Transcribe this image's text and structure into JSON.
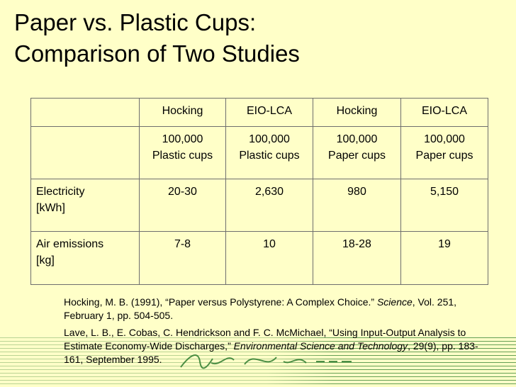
{
  "slide": {
    "title_line1": "Paper vs. Plastic Cups:",
    "title_line2": "Comparison of Two Studies"
  },
  "table": {
    "header_row1": [
      "",
      "Hocking",
      "EIO-LCA",
      "Hocking",
      "EIO-LCA"
    ],
    "header_row2": [
      [
        "",
        ""
      ],
      [
        "100,000",
        "Plastic cups"
      ],
      [
        "100,000",
        "Plastic cups"
      ],
      [
        "100,000",
        "Paper cups"
      ],
      [
        "100,000",
        "Paper cups"
      ]
    ],
    "rows": [
      {
        "label_line1": "Electricity",
        "label_line2": "[kWh]",
        "values": [
          "20-30",
          "2,630",
          "980",
          "5,150"
        ]
      },
      {
        "label_line1": "Air emissions",
        "label_line2": "[kg]",
        "values": [
          "7-8",
          "10",
          "18-28",
          "19"
        ]
      }
    ]
  },
  "references": {
    "ref1_before": "Hocking, M. B. (1991), “Paper versus Polystyrene: A Complex Choice.” ",
    "ref1_journal": "Science",
    "ref1_after": ", Vol. 251, February 1, pp. 504-505.",
    "ref2_before": "Lave, L. B., E. Cobas, C. Hendrickson and F. C. McMichael, “Using Input-Output Analysis to Estimate Economy-Wide Discharges,” ",
    "ref2_journal": "Environmental Science and Technology",
    "ref2_after": ", 29(9), pp. 183-161, September 1995."
  },
  "colors": {
    "background": "#ffffc8",
    "footer_stripes": "#2f7d2f",
    "table_border": "#6e6e6e"
  }
}
